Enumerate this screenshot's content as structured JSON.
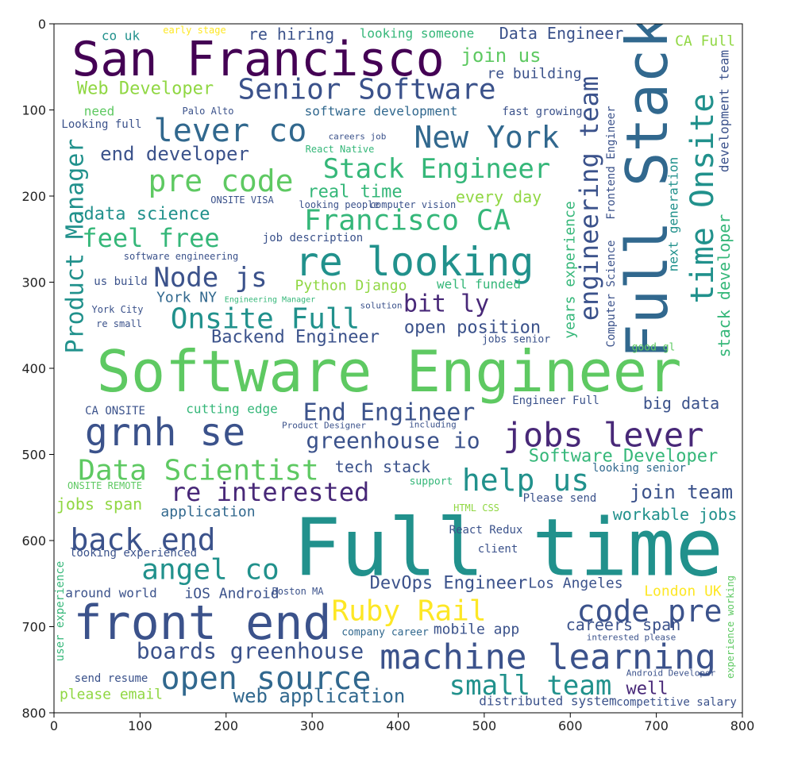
{
  "chart_data": {
    "type": "wordcloud",
    "xlim": [
      0,
      800
    ],
    "ylim": [
      800,
      0
    ],
    "xticks": [
      0,
      100,
      200,
      300,
      400,
      500,
      600,
      700,
      800
    ],
    "yticks": [
      0,
      100,
      200,
      300,
      400,
      500,
      600,
      700,
      800
    ],
    "words": [
      "San Francisco",
      "Full Stack",
      "Software Engineer",
      "Full time",
      "Senior Software",
      "lever co",
      "New York",
      "engineering team",
      "time Onsite",
      "re looking",
      "Stack Engineer",
      "pre code",
      "Francisco CA",
      "Product Manager",
      "grnh se",
      "jobs lever",
      "Data Scientist",
      "help us",
      "re interested",
      "back end",
      "angel co",
      "front end",
      "Ruby Rail",
      "code pre",
      "machine learning",
      "open source",
      "small team",
      "boards greenhouse",
      "Onsite Full",
      "Node js",
      "bit ly",
      "feel free",
      "End Engineer",
      "greenhouse io",
      "Software Developer",
      "join team",
      "Data Engineer",
      "join us",
      "re hiring",
      "looking someone",
      "co uk",
      "early stage",
      "CA Full",
      "re building",
      "Web Developer",
      "need",
      "software development",
      "fast growing",
      "end developer",
      "real time",
      "every day",
      "data science",
      "job description",
      "Python Django",
      "well funded",
      "York NY",
      "open position",
      "Backend Engineer",
      "jobs senior",
      "big data",
      "Engineer Full",
      "CA ONSITE",
      "cutting edge",
      "tech stack",
      "looking senior",
      "support",
      "ONSITE REMOTE",
      "jobs span",
      "application",
      "Please send",
      "workable jobs",
      "HTML CSS",
      "React Redux",
      "looking experienced",
      "DevOps Engineer",
      "Los Angeles",
      "iOS Android",
      "around world",
      "London UK",
      "company career",
      "mobile app",
      "careers span",
      "send resume",
      "please email",
      "web application",
      "well",
      "distributed system",
      "competitive salary",
      "years experience",
      "Computer Science",
      "Frontend Engineer",
      "next generation",
      "stack developer",
      "development team",
      "good gl",
      "Palo Alto",
      "Looking full",
      "React Native",
      "ONSITE VISA",
      "looking people",
      "computer vision",
      "software engineering",
      "us build",
      "York City",
      "re small",
      "Engineering Manager",
      "user experience",
      "Boston MA",
      "client",
      "experience working",
      "Android Developer",
      "interested please",
      "solution",
      "careers job",
      "Product Designer",
      "including"
    ]
  }
}
